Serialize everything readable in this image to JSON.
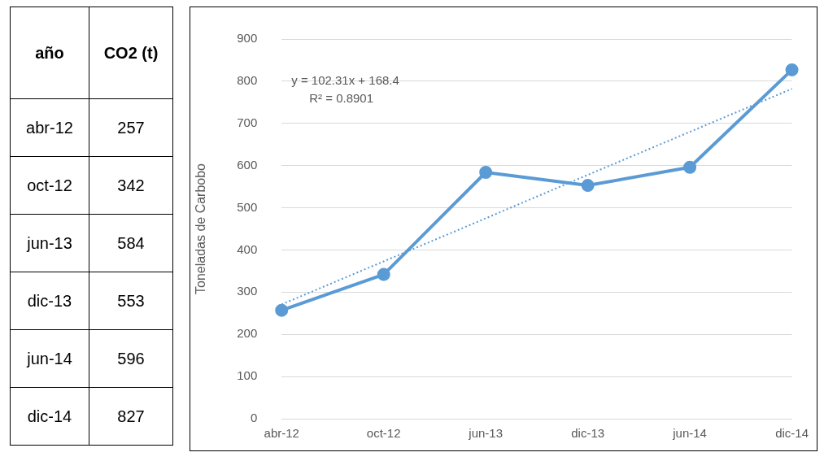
{
  "chart_data": [
    {
      "type": "other",
      "annotations": [
        "año",
        "CO2 (t)",
        "abr-12",
        "257",
        "oct-12",
        "342",
        "jun-13",
        "584",
        "dic-13",
        "553",
        "jun-14",
        "596",
        "dic-14",
        "827"
      ]
    },
    {
      "type": "line",
      "ylabel": "Toneladas de Carbobo",
      "categories": [
        "abr-12",
        "oct-12",
        "jun-13",
        "dic-13",
        "jun-14",
        "dic-14"
      ],
      "series": [
        {
          "color": "#5b9bd5",
          "values": [
            257,
            342,
            584,
            553,
            596,
            827
          ]
        },
        {
          "type": "line",
          "color": "#5b9bd5",
          "line_style": "dotted",
          "marker": "none",
          "values": [
            271,
            373,
            475,
            578,
            680,
            782
          ]
        }
      ],
      "ylim": [
        0,
        900
      ],
      "yticks": [
        0,
        100,
        200,
        300,
        400,
        500,
        600,
        700,
        800,
        900
      ],
      "grid": "y",
      "legend": false,
      "marker": "circle",
      "annotations": [
        "y = 102.31x + 168.4",
        "R² = 0.8901"
      ]
    }
  ]
}
